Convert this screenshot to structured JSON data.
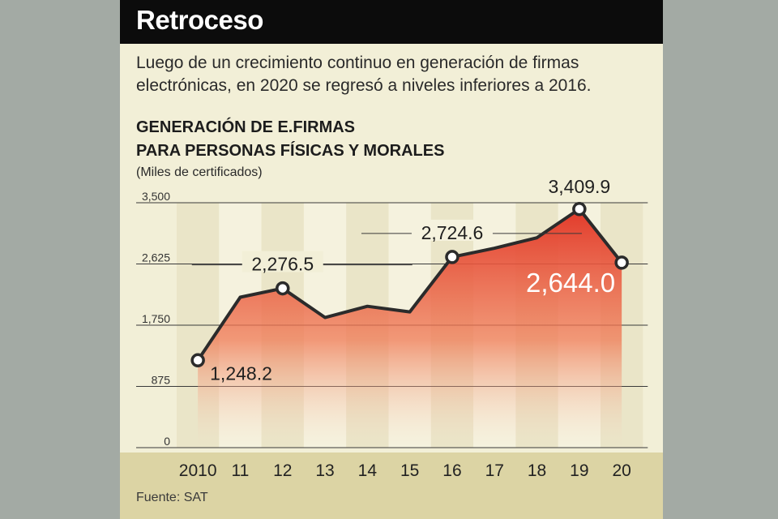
{
  "header": {
    "title": "Retroceso"
  },
  "subtitle": "Luego de un crecimiento continuo en generación de firmas electrónicas, en 2020 se regresó a niveles inferiores a 2016.",
  "chart_header": {
    "line1": "GENERACIÓN DE E.FIRMAS",
    "line2": "PARA PERSONAS FÍSICAS Y MORALES",
    "unit": "(Miles de certificados)"
  },
  "source": "Fuente: SAT",
  "colors": {
    "header_bg": "#0c0c0c",
    "card_bg": "#f2efd7",
    "area_top": "#e23a2a",
    "line": "#2b2b2b",
    "footer_bg": "#dcd4a4"
  },
  "chart_data": {
    "type": "area",
    "title": "GENERACIÓN DE E.FIRMAS PARA PERSONAS FÍSICAS Y MORALES",
    "ylabel": "Miles de certificados",
    "xlabel": "",
    "categories": [
      "2010",
      "11",
      "12",
      "13",
      "14",
      "15",
      "16",
      "17",
      "18",
      "19",
      "20"
    ],
    "values": [
      1248.2,
      2150,
      2276.5,
      1860,
      2020,
      1940,
      2724.6,
      2850,
      3000,
      3409.9,
      2644.0
    ],
    "ylim": [
      0,
      3500
    ],
    "yticks": [
      0,
      875,
      1750,
      2625,
      3500
    ],
    "ytick_labels": [
      "0",
      "875",
      "1,750",
      "2,625",
      "3,500"
    ],
    "grid": true,
    "annotations": [
      {
        "index": 0,
        "label": "1,248.2",
        "position": "right-below"
      },
      {
        "index": 2,
        "label": "2,276.5",
        "position": "above"
      },
      {
        "index": 6,
        "label": "2,724.6",
        "position": "above"
      },
      {
        "index": 9,
        "label": "3,409.9",
        "position": "above"
      },
      {
        "index": 10,
        "label": "2,644.0",
        "position": "inside-left"
      }
    ],
    "highlighted_points": [
      0,
      2,
      6,
      9,
      10
    ]
  }
}
